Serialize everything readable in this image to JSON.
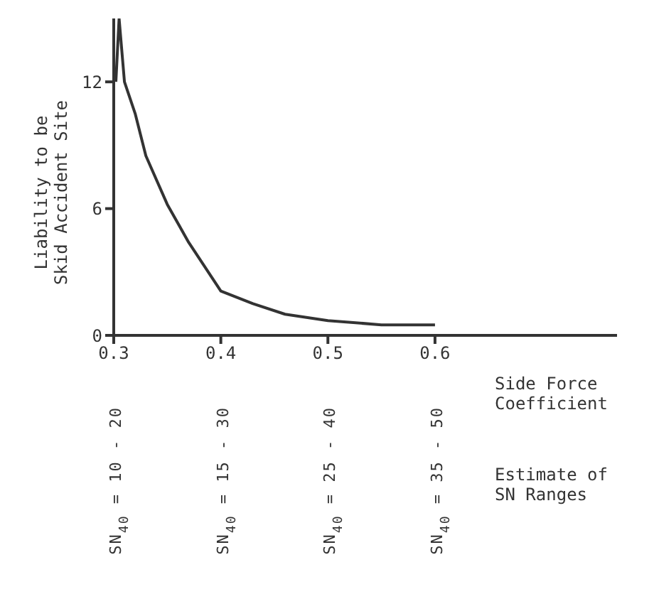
{
  "chart_data": {
    "type": "line",
    "xlabel": "Side Force\nCoefficient",
    "ylabel": "Liability to be\nSkid Accident Site",
    "xlim": [
      0.3,
      0.77
    ],
    "xticks": [
      0.3,
      0.4,
      0.5,
      0.6
    ],
    "ylim": [
      0,
      15
    ],
    "yticks": [
      0,
      6,
      12
    ],
    "grid": false,
    "legend": false,
    "marker": "none",
    "line_style": "solid",
    "series": [
      {
        "color": "#333333",
        "x": [
          0.302,
          0.305,
          0.31,
          0.32,
          0.33,
          0.35,
          0.37,
          0.4,
          0.43,
          0.46,
          0.5,
          0.55,
          0.6
        ],
        "values": [
          12,
          15,
          12,
          10.5,
          8.5,
          6.2,
          4.4,
          2.1,
          1.5,
          1.0,
          0.7,
          0.5,
          0.5
        ]
      }
    ],
    "annotations": [
      "SN$_{40}$ = 10 - 20",
      "SN$_{40}$ = 15 - 30",
      "SN$_{40}$ = 25 - 40",
      "SN$_{40}$ = 35 - 50",
      "Estimate of\nSN Ranges"
    ]
  }
}
